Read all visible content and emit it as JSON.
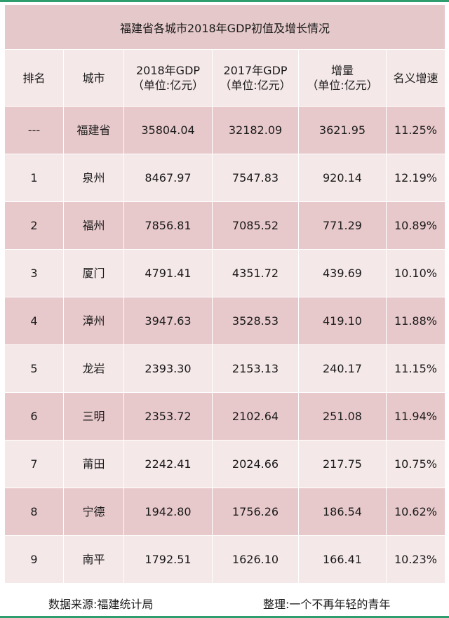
{
  "title": "福建省各城市2018年GDP初值及增长情况",
  "headers": [
    {
      "line1": "排名",
      "line2": ""
    },
    {
      "line1": "城市",
      "line2": ""
    },
    {
      "line1": "2018年GDP",
      "line2": "（单位:亿元）"
    },
    {
      "line1": "2017年GDP",
      "line2": "（单位:亿元）"
    },
    {
      "line1": "增量",
      "line2": "（单位:亿元）"
    },
    {
      "line1": "名义增速",
      "line2": ""
    }
  ],
  "rows": [
    [
      "---",
      "福建省",
      "35804.04",
      "32182.09",
      "3621.95",
      "11.25%"
    ],
    [
      "1",
      "泉州",
      "8467.97",
      "7547.83",
      "920.14",
      "12.19%"
    ],
    [
      "2",
      "福州",
      "7856.81",
      "7085.52",
      "771.29",
      "10.89%"
    ],
    [
      "3",
      "厦门",
      "4791.41",
      "4351.72",
      "439.69",
      "10.10%"
    ],
    [
      "4",
      "漳州",
      "3947.63",
      "3528.53",
      "419.10",
      "11.88%"
    ],
    [
      "5",
      "龙岩",
      "2393.30",
      "2153.13",
      "240.17",
      "11.15%"
    ],
    [
      "6",
      "三明",
      "2353.72",
      "2102.64",
      "251.08",
      "11.94%"
    ],
    [
      "7",
      "莆田",
      "2242.41",
      "2024.66",
      "217.75",
      "10.75%"
    ],
    [
      "8",
      "宁德",
      "1942.80",
      "1756.26",
      "186.54",
      "10.62%"
    ],
    [
      "9",
      "南平",
      "1792.51",
      "1626.10",
      "166.41",
      "10.23%"
    ]
  ],
  "footer": {
    "source": "数据来源:福建统计局",
    "editor": "整理:一个不再年轻的青年"
  },
  "colors": {
    "accent_line": "#2f9e6e",
    "row_dark": "#e8c9cb",
    "row_light": "#f5e8e9",
    "title_bg": "#e5c8c9"
  }
}
